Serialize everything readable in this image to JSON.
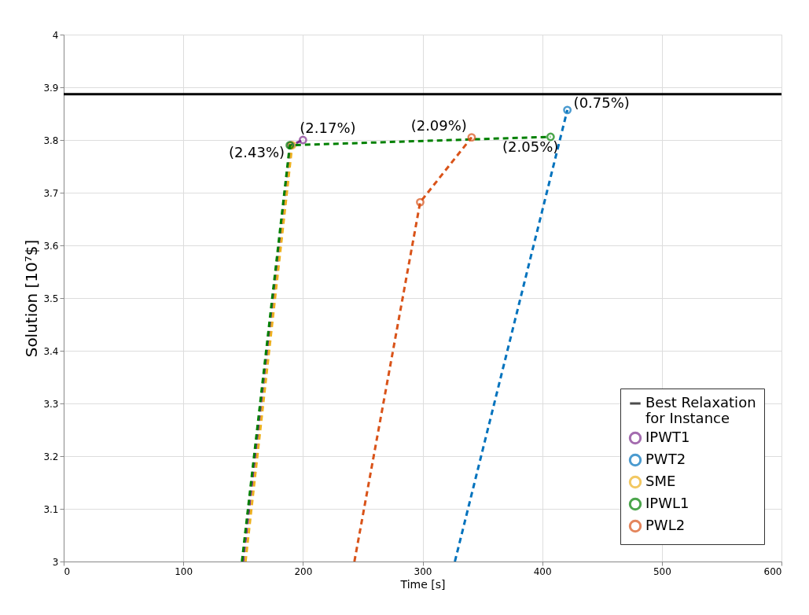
{
  "chart_data": {
    "type": "line",
    "xlabel": "Time [s]",
    "ylabel": "Solution [10⁷$]",
    "xlim": [
      0,
      600
    ],
    "xticks": [
      0,
      100,
      200,
      300,
      400,
      500,
      600
    ],
    "ylim": [
      3,
      4
    ],
    "yticks": [
      3,
      3.1,
      3.2,
      3.3,
      3.4,
      3.5,
      3.6,
      3.7,
      3.8,
      3.9,
      4
    ],
    "grid": true,
    "legend": "bottom right",
    "marker": "circle",
    "line_style": "dashed",
    "ref_lines": [
      {
        "axis": "y",
        "value": 3.887,
        "label": "Best Relaxation\nfor Instance",
        "color": "#000000",
        "line_style": "solid"
      }
    ],
    "series": [
      {
        "name": "IPWT1",
        "color": "#7e2f8e",
        "x": [
          150,
          190,
          200
        ],
        "values": [
          3,
          3.79,
          3.8
        ]
      },
      {
        "name": "PWT2",
        "color": "#0072bd",
        "x": [
          327,
          421
        ],
        "values": [
          3,
          3.857
        ]
      },
      {
        "name": "SME",
        "color": "#edb120",
        "x": [
          152,
          191
        ],
        "values": [
          3,
          3.79
        ]
      },
      {
        "name": "IPWL1",
        "color": "#008000",
        "x": [
          149,
          189,
          407
        ],
        "values": [
          3,
          3.79,
          3.806
        ]
      },
      {
        "name": "PWL2",
        "color": "#d95319",
        "x": [
          243,
          298,
          341
        ],
        "values": [
          3,
          3.682,
          3.805
        ]
      }
    ],
    "annotations": [
      {
        "text": "(2.43%)",
        "x": 190,
        "y": 3.79
      },
      {
        "text": "(2.17%)",
        "x": 200,
        "y": 3.8
      },
      {
        "text": "(2.09%)",
        "x": 341,
        "y": 3.805
      },
      {
        "text": "(2.05%)",
        "x": 407,
        "y": 3.806
      },
      {
        "text": "(0.75%)",
        "x": 421,
        "y": 3.857
      }
    ]
  }
}
